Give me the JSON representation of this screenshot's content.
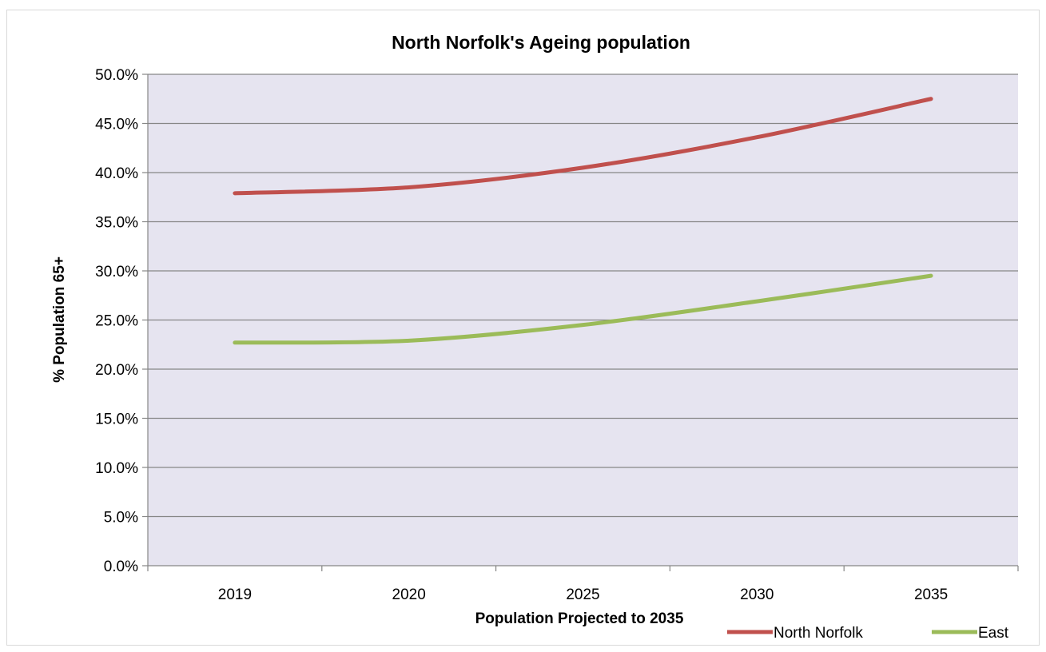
{
  "chart_data": {
    "type": "line",
    "title": "North Norfolk's Ageing population",
    "xlabel": "Population Projected to 2035",
    "ylabel": "% Population 65+",
    "categories": [
      "2019",
      "2020",
      "2025",
      "2030",
      "2035"
    ],
    "ylim": [
      0,
      50
    ],
    "yticks": [
      0,
      5,
      10,
      15,
      20,
      25,
      30,
      35,
      40,
      45,
      50
    ],
    "ytick_labels": [
      "0.0%",
      "5.0%",
      "10.0%",
      "15.0%",
      "20.0%",
      "25.0%",
      "30.0%",
      "35.0%",
      "40.0%",
      "45.0%",
      "50.0%"
    ],
    "grid": "horizontal major gridlines",
    "plot_background": "#e6e4f0",
    "legend_position": "bottom-right",
    "series": [
      {
        "name": "North Norfolk",
        "color": "#c0504d",
        "values": [
          37.9,
          38.5,
          40.5,
          43.6,
          47.5
        ]
      },
      {
        "name": "East",
        "color": "#9bbb59",
        "values": [
          22.7,
          22.9,
          24.5,
          26.9,
          29.5
        ]
      }
    ]
  }
}
